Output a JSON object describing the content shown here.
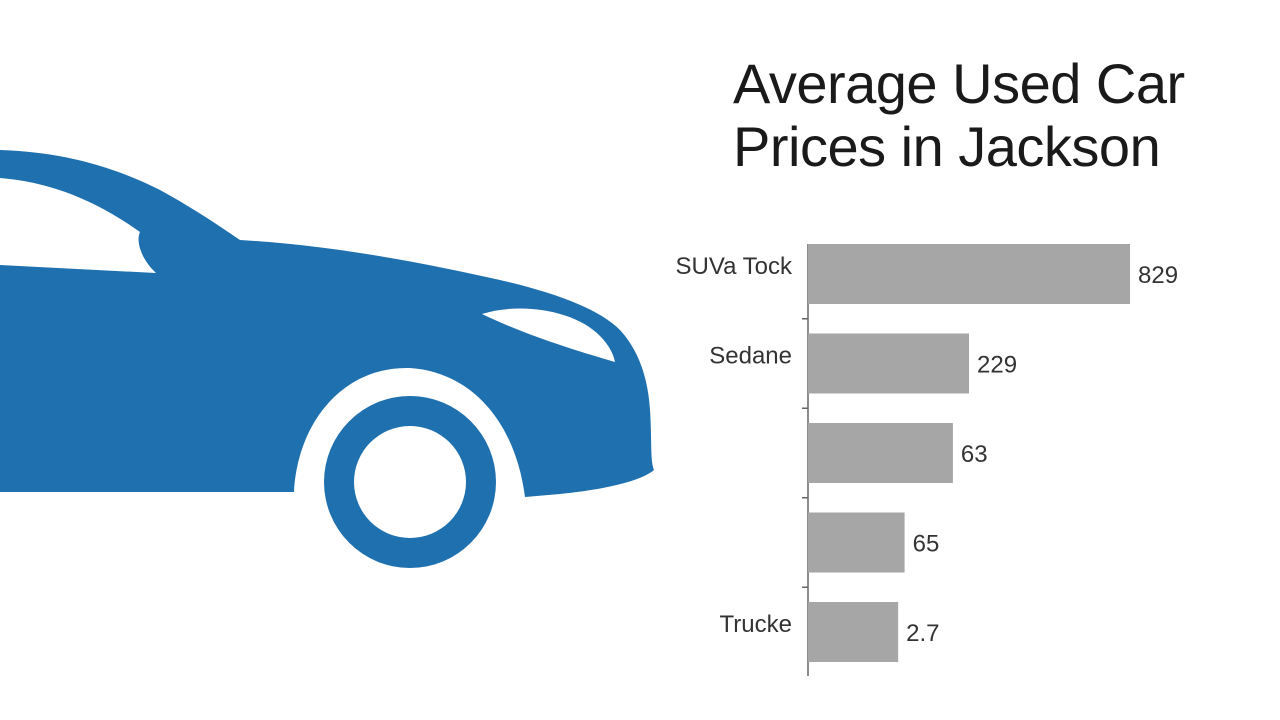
{
  "title_lines": [
    "Average Used Car",
    "Prices in Jackson"
  ],
  "colors": {
    "car": "#1f70ae",
    "bar": "#a6a6a6",
    "text": "#1a1a1a",
    "background": "#ffffff"
  },
  "illustration": {
    "icon": "car-silhouette-icon"
  },
  "chart_data": {
    "type": "bar",
    "orientation": "horizontal",
    "title": "Average Used Car Prices in Jackson",
    "categories": [
      "SUVa Tock",
      "Sedane",
      "",
      "",
      "Trucke"
    ],
    "values": [
      829,
      229,
      63,
      65,
      2.7
    ],
    "value_labels": [
      "829",
      "229",
      "63",
      "65",
      "2.7"
    ],
    "bar_lengths_relative": [
      1.0,
      0.5,
      0.45,
      0.3,
      0.28
    ],
    "xlabel": "",
    "ylabel": "",
    "grid": false,
    "legend": "none"
  }
}
